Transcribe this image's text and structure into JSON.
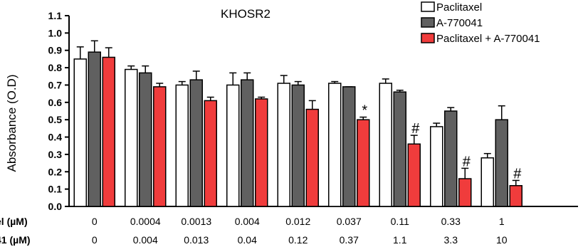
{
  "chart_data": {
    "type": "bar",
    "title": "KHOSR2",
    "ylabel": "Absorbance (O.D)",
    "ylim": [
      0,
      1.1
    ],
    "yticks": [
      "0.0",
      "0.1",
      "0.2",
      "0.3",
      "0.4",
      "0.5",
      "0.6",
      "0.7",
      "0.8",
      "0.9",
      "1.0",
      "1.1"
    ],
    "grid": false,
    "legend_position": "top-right",
    "row_labels": [
      "el (µM)",
      "41 (µM)"
    ],
    "categories_row1": [
      "0",
      "0.0004",
      "0.0013",
      "0.004",
      "0.012",
      "0.037",
      "0.11",
      "0.33",
      "1"
    ],
    "categories_row2": [
      "0",
      "0.004",
      "0.013",
      "0.04",
      "0.12",
      "0.37",
      "1.1",
      "3.3",
      "10"
    ],
    "series": [
      {
        "name": "Paclitaxel",
        "color": "#ffffff",
        "values": [
          0.85,
          0.79,
          0.7,
          0.7,
          0.71,
          0.71,
          0.71,
          0.46,
          0.28
        ],
        "errors": [
          0.07,
          0.02,
          0.02,
          0.07,
          0.045,
          0.01,
          0.025,
          0.02,
          0.025
        ]
      },
      {
        "name": "A-770041",
        "color": "#606060",
        "values": [
          0.89,
          0.77,
          0.73,
          0.73,
          0.7,
          0.69,
          0.66,
          0.55,
          0.5
        ],
        "errors": [
          0.065,
          0.04,
          0.05,
          0.04,
          0.02,
          0.0,
          0.01,
          0.02,
          0.08
        ]
      },
      {
        "name": "Paclitaxel + A-770041",
        "color": "#f03c3c",
        "values": [
          0.86,
          0.69,
          0.61,
          0.62,
          0.56,
          0.5,
          0.36,
          0.16,
          0.12
        ],
        "errors": [
          0.055,
          0.02,
          0.02,
          0.01,
          0.05,
          0.015,
          0.05,
          0.06,
          0.03
        ]
      }
    ],
    "annotations": [
      {
        "category_index": 5,
        "series_index": 2,
        "text": "*"
      },
      {
        "category_index": 6,
        "series_index": 2,
        "text": "#"
      },
      {
        "category_index": 7,
        "series_index": 2,
        "text": "#"
      },
      {
        "category_index": 8,
        "series_index": 2,
        "text": "#"
      }
    ]
  }
}
